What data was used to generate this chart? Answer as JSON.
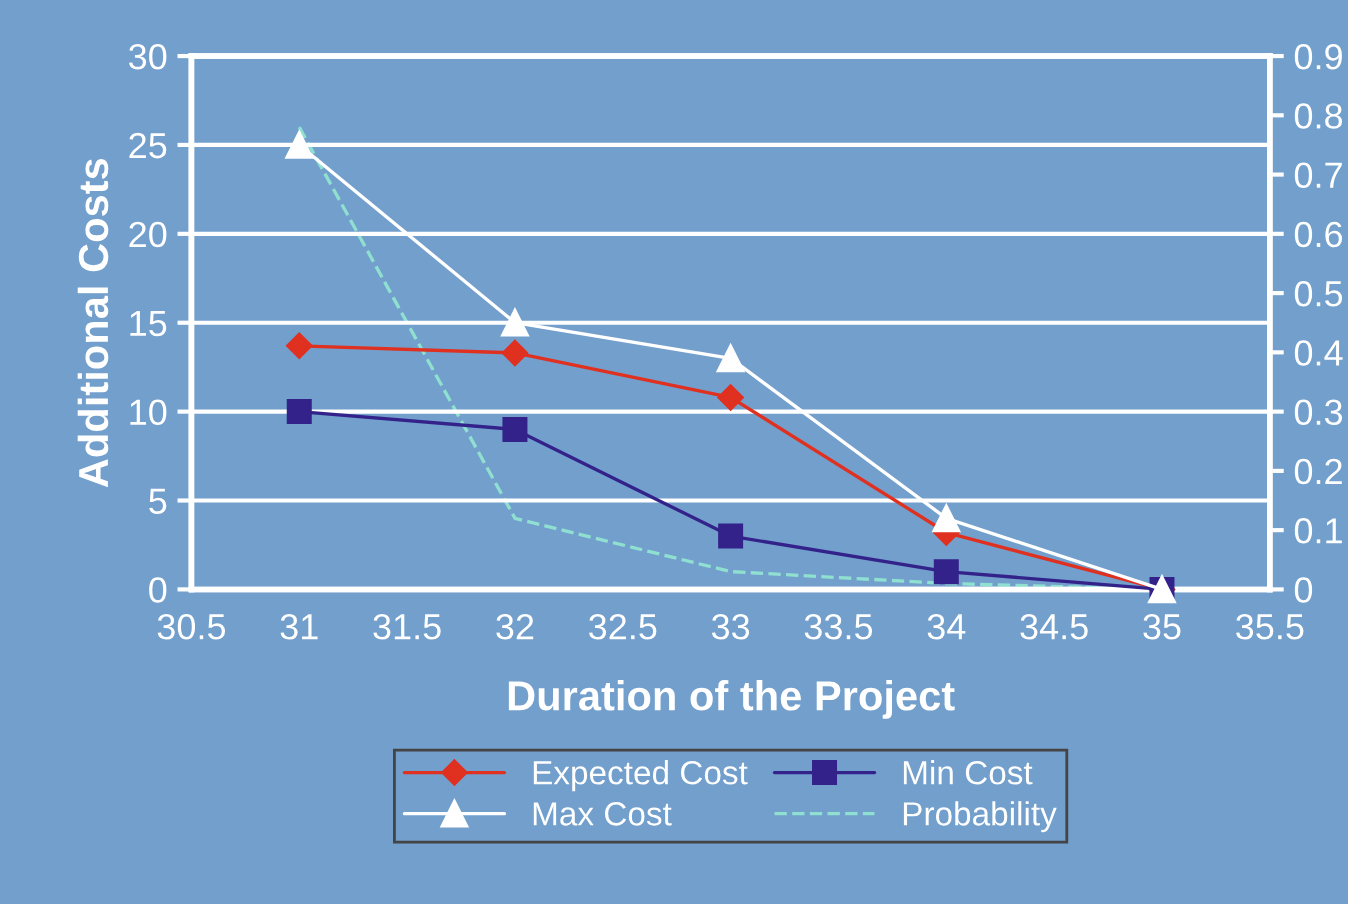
{
  "chart_data": {
    "type": "line",
    "xlabel": "Duration of the Project",
    "ylabel": "Additional Costs",
    "x": [
      31,
      32,
      33,
      34,
      35
    ],
    "xlim": [
      30.5,
      35.5
    ],
    "xticks": [
      {
        "value": 30.5,
        "label": "30.5"
      },
      31,
      {
        "value": 31.5,
        "label": "31.5"
      },
      32,
      {
        "value": 32.5,
        "label": "32.5"
      },
      33,
      {
        "value": 33.5,
        "label": "33.5"
      },
      34,
      {
        "value": 34.5,
        "label": "34.5"
      },
      35,
      {
        "value": 35.5,
        "label": "35.5"
      }
    ],
    "ylim": [
      0,
      30
    ],
    "yticks": [
      0,
      5,
      10,
      15,
      20,
      25,
      30
    ],
    "y2lim": [
      0,
      0.9
    ],
    "y2ticks": [
      0,
      0.1,
      0.2,
      0.3,
      0.4,
      0.5,
      0.6,
      0.7,
      0.8,
      0.9
    ],
    "grid": "y",
    "legend": "bottom",
    "series": [
      {
        "name": "Expected Cost",
        "color": "#e03020",
        "marker": "diamond",
        "line_style": "solid",
        "values": [
          13.7,
          13.3,
          10.8,
          3.2,
          0
        ]
      },
      {
        "name": "Min Cost",
        "color": "#33228a",
        "marker": "square",
        "line_style": "solid",
        "values": [
          10,
          9,
          3,
          1,
          0
        ]
      },
      {
        "name": "Max Cost",
        "color": "#ffffff",
        "marker": "triangle",
        "line_style": "solid",
        "values": [
          25,
          15,
          13,
          4,
          0
        ]
      },
      {
        "name": "Probability",
        "color": "#8fe0d0",
        "marker": "none",
        "line_style": "dashed",
        "axis": "y2",
        "values": [
          0.78,
          0.12,
          0.03,
          0.01,
          0
        ]
      }
    ]
  }
}
